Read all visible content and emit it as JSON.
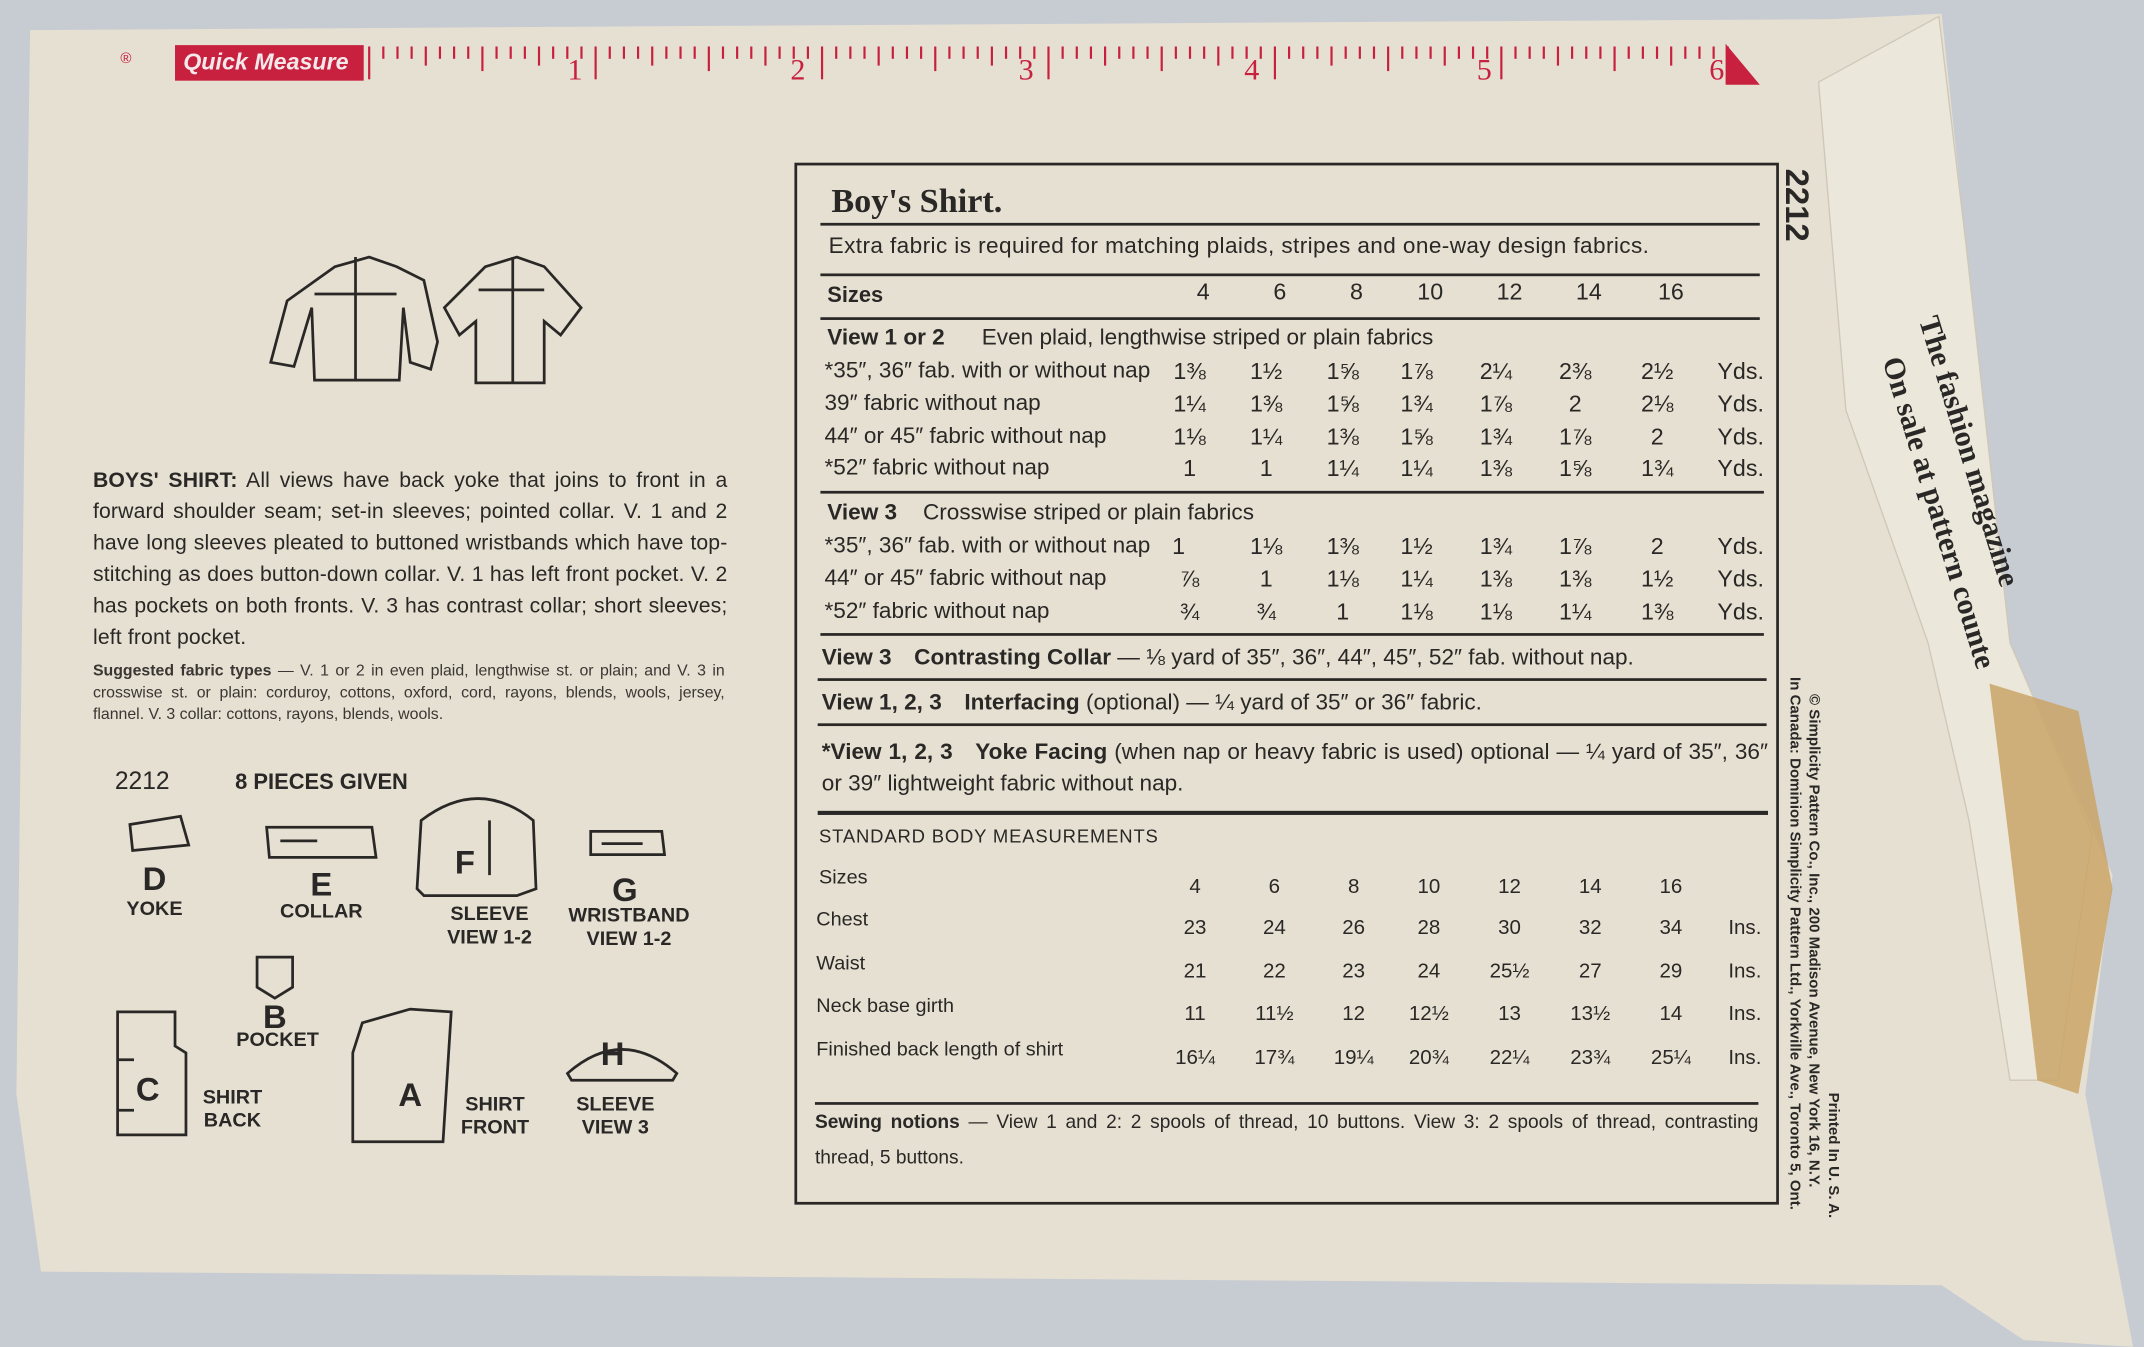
{
  "ruler": {
    "mark": "®",
    "label": "Quick Measure",
    "numbers": [
      "1",
      "2",
      "3",
      "4",
      "5",
      "6"
    ]
  },
  "description": {
    "lead": "BOYS' SHIRT:",
    "text": "All views have back yoke that joins to front in a forward shoulder seam; set-in sleeves; pointed collar. V. 1 and 2 have long sleeves pleated to buttoned wristbands which have top-stitching as does button-down collar. V. 1 has left front pocket. V. 2 has pockets on both fronts. V. 3 has contrast collar; short sleeves; left front pocket."
  },
  "fabric_types": {
    "lead": "Suggested fabric types",
    "text": "— V. 1 or 2 in even plaid, lengthwise st. or plain; and V. 3 in crosswise st. or plain: corduroy, cottons, oxford, cord, rayons, blends, wools, jersey, flannel. V. 3 collar: cottons, rayons, blends, wools."
  },
  "pattern": {
    "number": "2212",
    "pieces_given": "8 PIECES GIVEN",
    "pieces": [
      {
        "letter": "D",
        "label": "YOKE"
      },
      {
        "letter": "E",
        "label": "COLLAR"
      },
      {
        "letter": "F",
        "label": "SLEEVE VIEW 1-2"
      },
      {
        "letter": "G",
        "label": "WRISTBAND VIEW 1-2"
      },
      {
        "letter": "B",
        "label": "POCKET"
      },
      {
        "letter": "C",
        "label": "SHIRT BACK"
      },
      {
        "letter": "A",
        "label": "SHIRT FRONT"
      },
      {
        "letter": "H",
        "label": "SLEEVE VIEW 3"
      }
    ]
  },
  "yardage": {
    "title": "Boy's Shirt.",
    "note": "Extra fabric is required for matching plaids, stripes and one-way design fabrics.",
    "sizes_label": "Sizes",
    "sizes": [
      "4",
      "6",
      "8",
      "10",
      "12",
      "14",
      "16"
    ],
    "sections": [
      {
        "view": "View 1 or 2",
        "heading": "Even plaid, lengthwise striped or plain fabrics",
        "rows": [
          {
            "label": "*35″, 36″ fab. with or without nap",
            "cells": [
              "1⅜",
              "1½",
              "1⅝",
              "1⅞",
              "2¼",
              "2⅜",
              "2½"
            ],
            "unit": "Yds."
          },
          {
            "label": "39″ fabric without nap",
            "cells": [
              "1¼",
              "1⅜",
              "1⅝",
              "1¾",
              "1⅞",
              "2",
              "2⅛"
            ],
            "unit": "Yds."
          },
          {
            "label": "44″ or 45″ fabric without nap",
            "cells": [
              "1⅛",
              "1¼",
              "1⅜",
              "1⅝",
              "1¾",
              "1⅞",
              "2"
            ],
            "unit": "Yds."
          },
          {
            "label": "*52″ fabric without nap",
            "cells": [
              "1",
              "1",
              "1¼",
              "1¼",
              "1⅜",
              "1⅝",
              "1¾"
            ],
            "unit": "Yds."
          }
        ]
      },
      {
        "view": "View 3",
        "heading": "Crosswise striped or plain fabrics",
        "rows": [
          {
            "label": "*35″, 36″ fab. with or without nap",
            "cells": [
              "1",
              "1⅛",
              "1⅜",
              "1½",
              "1¾",
              "1⅞",
              "2"
            ],
            "unit": "Yds."
          },
          {
            "label": "44″ or 45″ fabric without nap",
            "cells": [
              "⅞",
              "1",
              "1⅛",
              "1¼",
              "1⅜",
              "1⅜",
              "1½"
            ],
            "unit": "Yds."
          },
          {
            "label": "*52″ fabric without nap",
            "cells": [
              "¾",
              "¾",
              "1",
              "1⅛",
              "1⅛",
              "1¼",
              "1⅜"
            ],
            "unit": "Yds."
          }
        ]
      }
    ],
    "notes": [
      {
        "view": "View 3",
        "label": "Contrasting Collar",
        "text": "— ⅛ yard of 35″, 36″, 44″, 45″, 52″ fab. without nap."
      },
      {
        "view": "View 1, 2, 3",
        "label": "Interfacing",
        "text": "(optional) — ¼ yard of 35″ or 36″ fabric."
      },
      {
        "view": "*View 1, 2, 3",
        "label": "Yoke Facing",
        "text": "(when nap or heavy fabric is used) optional — ¼ yard of 35″, 36″ or 39″ lightweight fabric without nap."
      }
    ]
  },
  "measurements": {
    "title": "STANDARD BODY MEASUREMENTS",
    "sizes_label": "Sizes",
    "sizes": [
      "4",
      "6",
      "8",
      "10",
      "12",
      "14",
      "16"
    ],
    "rows": [
      {
        "label": "Chest",
        "cells": [
          "23",
          "24",
          "26",
          "28",
          "30",
          "32",
          "34"
        ],
        "unit": "Ins."
      },
      {
        "label": "Waist",
        "cells": [
          "21",
          "22",
          "23",
          "24",
          "25½",
          "27",
          "29"
        ],
        "unit": "Ins."
      },
      {
        "label": "Neck base girth",
        "cells": [
          "11",
          "11½",
          "12",
          "12½",
          "13",
          "13½",
          "14"
        ],
        "unit": "Ins."
      },
      {
        "label": "Finished back length of shirt",
        "cells": [
          "16¼",
          "17¾",
          "19¼",
          "20¾",
          "22¼",
          "23¾",
          "25¼"
        ],
        "unit": "Ins."
      }
    ]
  },
  "notions": {
    "lead": "Sewing notions",
    "text": "— View 1 and 2: 2 spools of thread, 10 buttons. View 3: 2 spools of thread, contrasting thread, 5 buttons."
  },
  "side": {
    "number": "2212",
    "copyright": "© Simplicity Pattern Co., Inc., 200 Madison Avenue, New York 16, N.Y.",
    "canada": "In Canada: Dominion Simplicity Pattern Ltd., Yorkville Ave., Toronto 5, Ont.",
    "printed": "Printed In U. S. A.",
    "flap": [
      "The fashion magazine",
      "On sale at pattern counte"
    ]
  }
}
